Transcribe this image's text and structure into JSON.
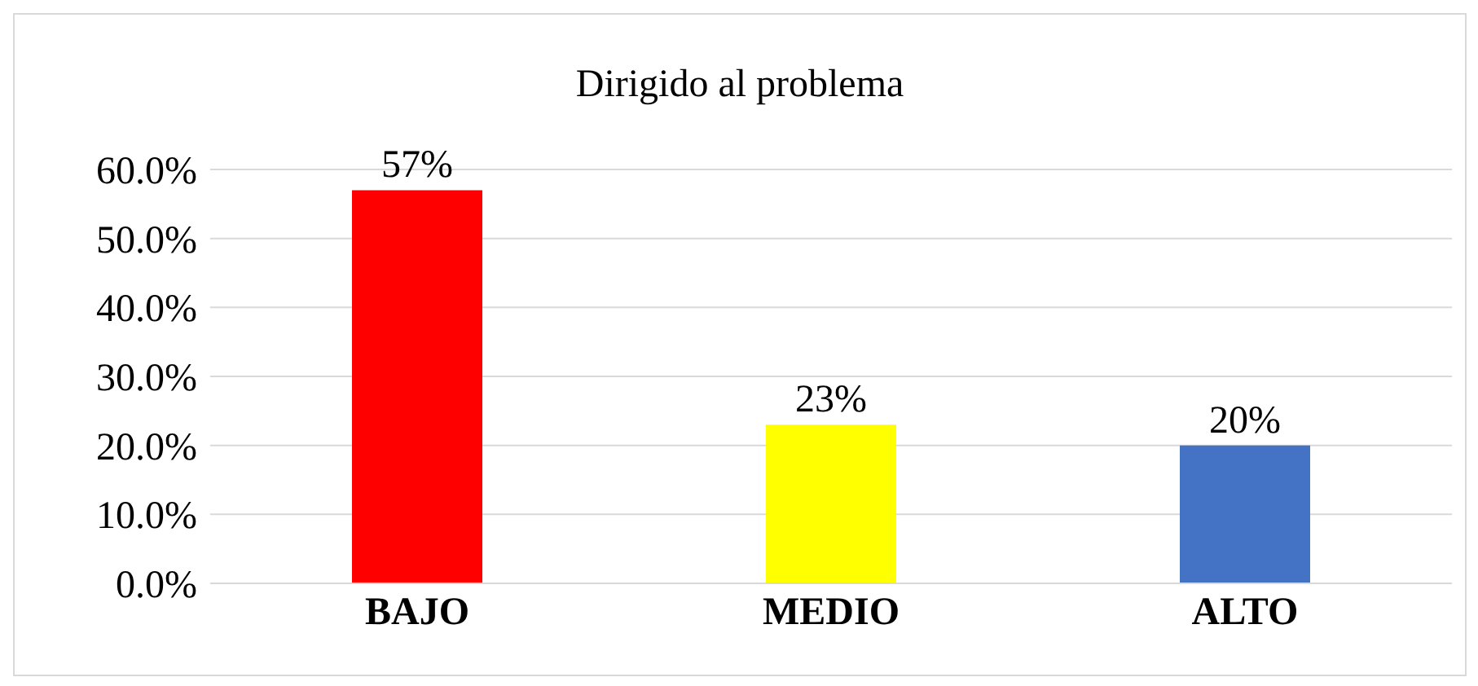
{
  "chart_data": {
    "type": "bar",
    "title": "Dirigido al problema",
    "categories": [
      "BAJO",
      "MEDIO",
      "ALTO"
    ],
    "values": [
      57,
      23,
      20
    ],
    "colors": [
      "#ff0000",
      "#ffff00",
      "#4472c4"
    ],
    "value_labels": [
      "57%",
      "23%",
      "20%"
    ],
    "ylim": [
      0,
      60
    ],
    "yticks": [
      {
        "value": 0,
        "label": "0.0%"
      },
      {
        "value": 10,
        "label": "10.0%"
      },
      {
        "value": 20,
        "label": "20.0%"
      },
      {
        "value": 30,
        "label": "30.0%"
      },
      {
        "value": 40,
        "label": "40.0%"
      },
      {
        "value": 50,
        "label": "50.0%"
      },
      {
        "value": 60,
        "label": "60.0%"
      }
    ],
    "grid": "y"
  }
}
